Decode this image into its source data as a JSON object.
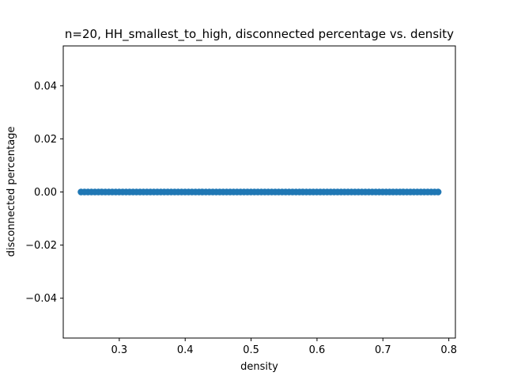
{
  "chart_data": {
    "type": "scatter",
    "title": "n=20, HH_smallest_to_high, disconnected percentage vs. density",
    "xlabel": "density",
    "ylabel": "disconnected percentage",
    "xlim": [
      0.215,
      0.81
    ],
    "ylim": [
      -0.055,
      0.055
    ],
    "xticks": [
      "0.3",
      "0.4",
      "0.5",
      "0.6",
      "0.7",
      "0.8"
    ],
    "xtick_values": [
      0.3,
      0.4,
      0.5,
      0.6,
      0.7,
      0.8
    ],
    "yticks": [
      "−0.04",
      "−0.02",
      "0.00",
      "0.02",
      "0.04"
    ],
    "ytick_values": [
      -0.04,
      -0.02,
      0.0,
      0.02,
      0.04
    ],
    "grid": false,
    "marker_color": "#1f77b4",
    "series": [
      {
        "x_start": 0.242,
        "x_end": 0.784,
        "x_step": 0.00526,
        "y": 0.0
      }
    ]
  }
}
